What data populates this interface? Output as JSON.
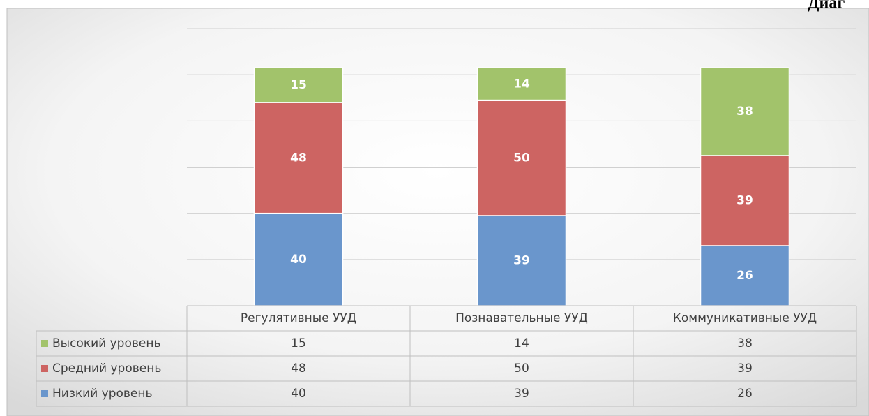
{
  "chart_data": {
    "type": "stacked_bar",
    "title": "Диаг",
    "categories": [
      "Регулятивные УУД",
      "Познавательные УУД",
      "Коммуникативные УУД"
    ],
    "series": [
      {
        "name": "Низкий уровень",
        "color": "#6a96cc",
        "values": [
          40,
          39,
          26
        ]
      },
      {
        "name": "Средний уровень",
        "color": "#cd6462",
        "values": [
          48,
          50,
          39
        ]
      },
      {
        "name": "Высокий уровень",
        "color": "#a2c36b",
        "values": [
          15,
          14,
          38
        ]
      }
    ],
    "ylim": [
      0,
      120
    ],
    "yticks": [
      0,
      20,
      40,
      60,
      80,
      100,
      120
    ],
    "grid": true
  }
}
